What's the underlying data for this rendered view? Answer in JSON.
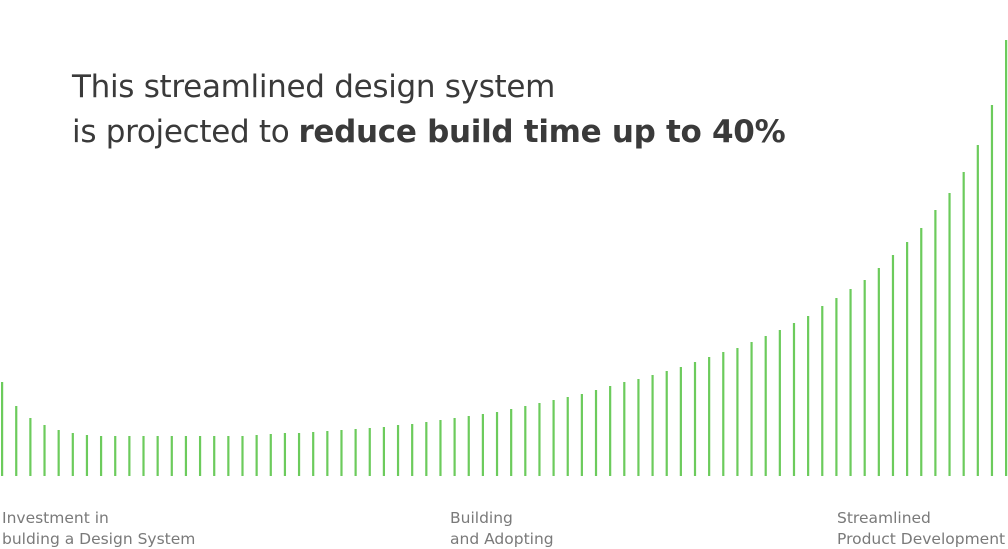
{
  "chart_data": {
    "type": "bar",
    "title": {
      "line1": "This streamlined design system",
      "line2_regular": "is projected to",
      "line2_bold": "reduce build time up to 40%"
    },
    "color": "#6ccb5c",
    "values": [
      94,
      70,
      58,
      51,
      46,
      43,
      41,
      40,
      40,
      40,
      40,
      40,
      40,
      40,
      40,
      40,
      40,
      40,
      41,
      42,
      43,
      43,
      44,
      45,
      46,
      47,
      48,
      49,
      51,
      52,
      54,
      56,
      58,
      60,
      62,
      64,
      67,
      70,
      73,
      76,
      79,
      82,
      86,
      90,
      94,
      97,
      101,
      105,
      109,
      114,
      119,
      124,
      128,
      134,
      140,
      146,
      153,
      160,
      170,
      178,
      187,
      196,
      208,
      221,
      234,
      248,
      266,
      283,
      304,
      331,
      371,
      436
    ],
    "annotations": [
      [
        "Investment in",
        "bulding a Design System"
      ],
      [
        "Building",
        "and Adopting"
      ],
      [
        "Streamlined",
        "Product Development"
      ]
    ]
  }
}
